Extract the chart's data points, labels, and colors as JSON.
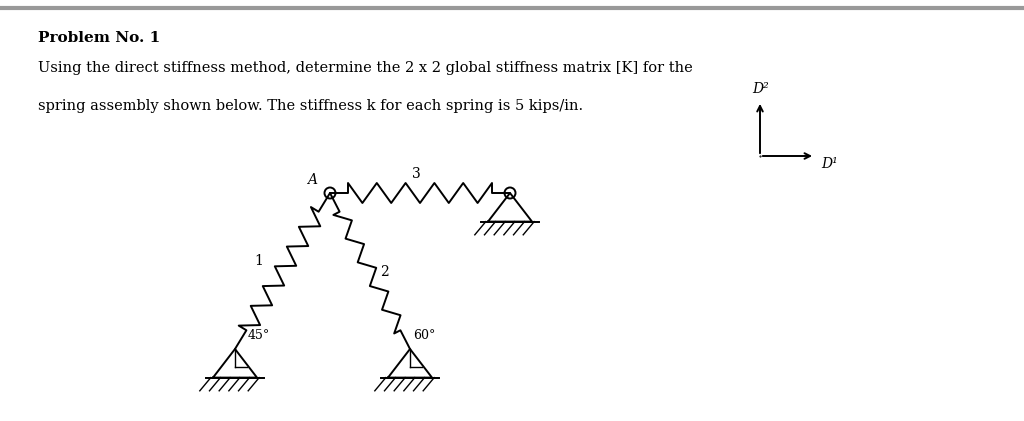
{
  "title": "Problem No. 1",
  "body_text_line1": "Using the direct stiffness method, determine the 2 x 2 global stiffness matrix [K] for the",
  "body_text_line2": "spring assembly shown below. The stiffness k for each spring is 5 kips/in.",
  "bg_color": "#ffffff",
  "text_color": "#000000",
  "fig_width": 10.24,
  "fig_height": 4.21,
  "dpi": 100,
  "D1_label": "D¹",
  "D2_label": "D²",
  "angle1_label": "45°",
  "angle2_label": "60°"
}
